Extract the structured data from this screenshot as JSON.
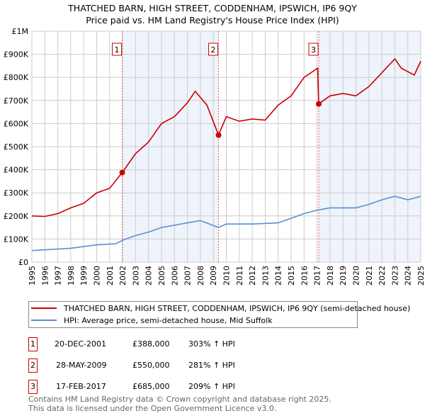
{
  "chart_data": {
    "type": "line",
    "title": "THATCHED BARN, HIGH STREET, CODDENHAM, IPSWICH, IP6 9QY",
    "subtitle": "Price paid vs. HM Land Registry's House Price Index (HPI)",
    "xlim": [
      1995,
      2025
    ],
    "ylim": [
      0,
      1000000
    ],
    "x_ticks": [
      "1995",
      "1996",
      "1997",
      "1998",
      "1999",
      "2000",
      "2001",
      "2002",
      "2003",
      "2004",
      "2005",
      "2006",
      "2007",
      "2008",
      "2009",
      "2010",
      "2011",
      "2012",
      "2013",
      "2014",
      "2015",
      "2016",
      "2017",
      "2018",
      "2019",
      "2020",
      "2021",
      "2022",
      "2023",
      "2024",
      "2025"
    ],
    "y_ticks": [
      {
        "v": 0,
        "label": "£0"
      },
      {
        "v": 100000,
        "label": "£100K"
      },
      {
        "v": 200000,
        "label": "£200K"
      },
      {
        "v": 300000,
        "label": "£300K"
      },
      {
        "v": 400000,
        "label": "£400K"
      },
      {
        "v": 500000,
        "label": "£500K"
      },
      {
        "v": 600000,
        "label": "£600K"
      },
      {
        "v": 700000,
        "label": "£700K"
      },
      {
        "v": 800000,
        "label": "£800K"
      },
      {
        "v": 900000,
        "label": "£900K"
      },
      {
        "v": 1000000,
        "label": "£1M"
      }
    ],
    "grid": true,
    "series": [
      {
        "name": "THATCHED BARN, HIGH STREET, CODDENHAM, IPSWICH, IP6 9QY (semi-detached house)",
        "color": "#cc0000",
        "x": [
          1995,
          1996,
          1997,
          1998,
          1999,
          2000,
          2001,
          2001.97,
          2003,
          2004,
          2005,
          2006,
          2007,
          2007.6,
          2008.5,
          2009.4,
          2010,
          2011,
          2012,
          2013,
          2014,
          2015,
          2016,
          2017.05,
          2017.13,
          2018,
          2019,
          2020,
          2021,
          2022,
          2023,
          2023.5,
          2024.5,
          2025
        ],
        "y": [
          200000,
          198000,
          210000,
          235000,
          255000,
          300000,
          320000,
          388000,
          470000,
          520000,
          600000,
          630000,
          690000,
          740000,
          680000,
          550000,
          630000,
          610000,
          620000,
          615000,
          680000,
          720000,
          800000,
          840000,
          685000,
          720000,
          730000,
          720000,
          760000,
          820000,
          880000,
          840000,
          810000,
          870000
        ]
      },
      {
        "name": "HPI: Average price, semi-detached house, Mid Suffolk",
        "color": "#5b8fd0",
        "x": [
          1995,
          1998,
          2000,
          2001.5,
          2002,
          2003,
          2004,
          2005,
          2007,
          2008,
          2009.4,
          2010,
          2012,
          2014,
          2015,
          2016,
          2017,
          2018,
          2020,
          2021,
          2022,
          2023,
          2024,
          2025
        ],
        "y": [
          50000,
          60000,
          75000,
          80000,
          95000,
          115000,
          130000,
          150000,
          170000,
          180000,
          150000,
          165000,
          165000,
          170000,
          190000,
          210000,
          225000,
          235000,
          235000,
          250000,
          270000,
          285000,
          270000,
          285000
        ]
      }
    ],
    "sales": [
      {
        "num": "1",
        "x": 2001.97,
        "y": 388000,
        "date": "20-DEC-2001",
        "price": "£388,000",
        "hpi": "303% ↑ HPI"
      },
      {
        "num": "2",
        "x": 2009.4,
        "y": 550000,
        "date": "28-MAY-2009",
        "price": "£550,000",
        "hpi": "281% ↑ HPI"
      },
      {
        "num": "3",
        "x": 2017.13,
        "y": 685000,
        "date": "17-FEB-2017",
        "price": "£685,000",
        "hpi": "209% ↑ HPI"
      }
    ],
    "legend_placement": "below"
  },
  "footer": {
    "line1": "Contains HM Land Registry data © Crown copyright and database right 2025.",
    "line2": "This data is licensed under the Open Government Licence v3.0."
  }
}
